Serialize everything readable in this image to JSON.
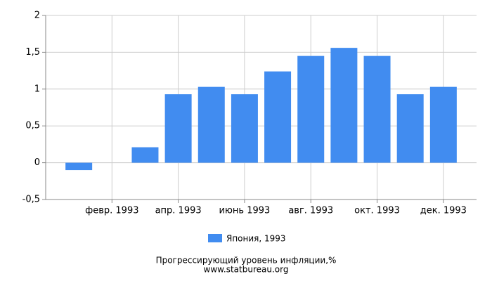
{
  "chart_data": {
    "type": "bar",
    "categories": [
      null,
      "февр. 1993",
      null,
      "апр. 1993",
      null,
      "июнь 1993",
      null,
      "авг. 1993",
      null,
      "окт. 1993",
      null,
      "дек. 1993"
    ],
    "series": [
      {
        "name": "Япония, 1993",
        "color": "#418cf0",
        "values": [
          -0.1,
          0,
          0.21,
          0.93,
          1.03,
          0.93,
          1.24,
          1.45,
          1.56,
          1.45,
          0.93,
          1.03
        ]
      }
    ],
    "ylim": [
      -0.5,
      2
    ],
    "yticks": [
      {
        "value": -0.5,
        "label": "-0,5"
      },
      0,
      {
        "value": 0.5,
        "label": "0,5"
      },
      1,
      {
        "value": 1.5,
        "label": "1,5"
      },
      2
    ],
    "grid": true,
    "footer": [
      "Прогрессирующий уровень инфляции,%",
      "www.statbureau.org"
    ]
  }
}
